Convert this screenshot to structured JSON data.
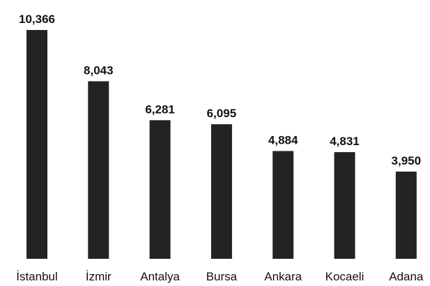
{
  "chart_data": {
    "type": "bar",
    "categories": [
      "İstanbul",
      "İzmir",
      "Antalya",
      "Bursa",
      "Ankara",
      "Kocaeli",
      "Adana"
    ],
    "values": [
      10366,
      8043,
      6281,
      6095,
      4884,
      4831,
      3950
    ],
    "value_labels": [
      "10,366",
      "8,043",
      "6,281",
      "6,095",
      "4,884",
      "4,831",
      "3,950"
    ],
    "title": "",
    "xlabel": "",
    "ylabel": "",
    "ylim": [
      0,
      10366
    ],
    "grid": false,
    "legend": "none",
    "bar_color": "#232323"
  }
}
